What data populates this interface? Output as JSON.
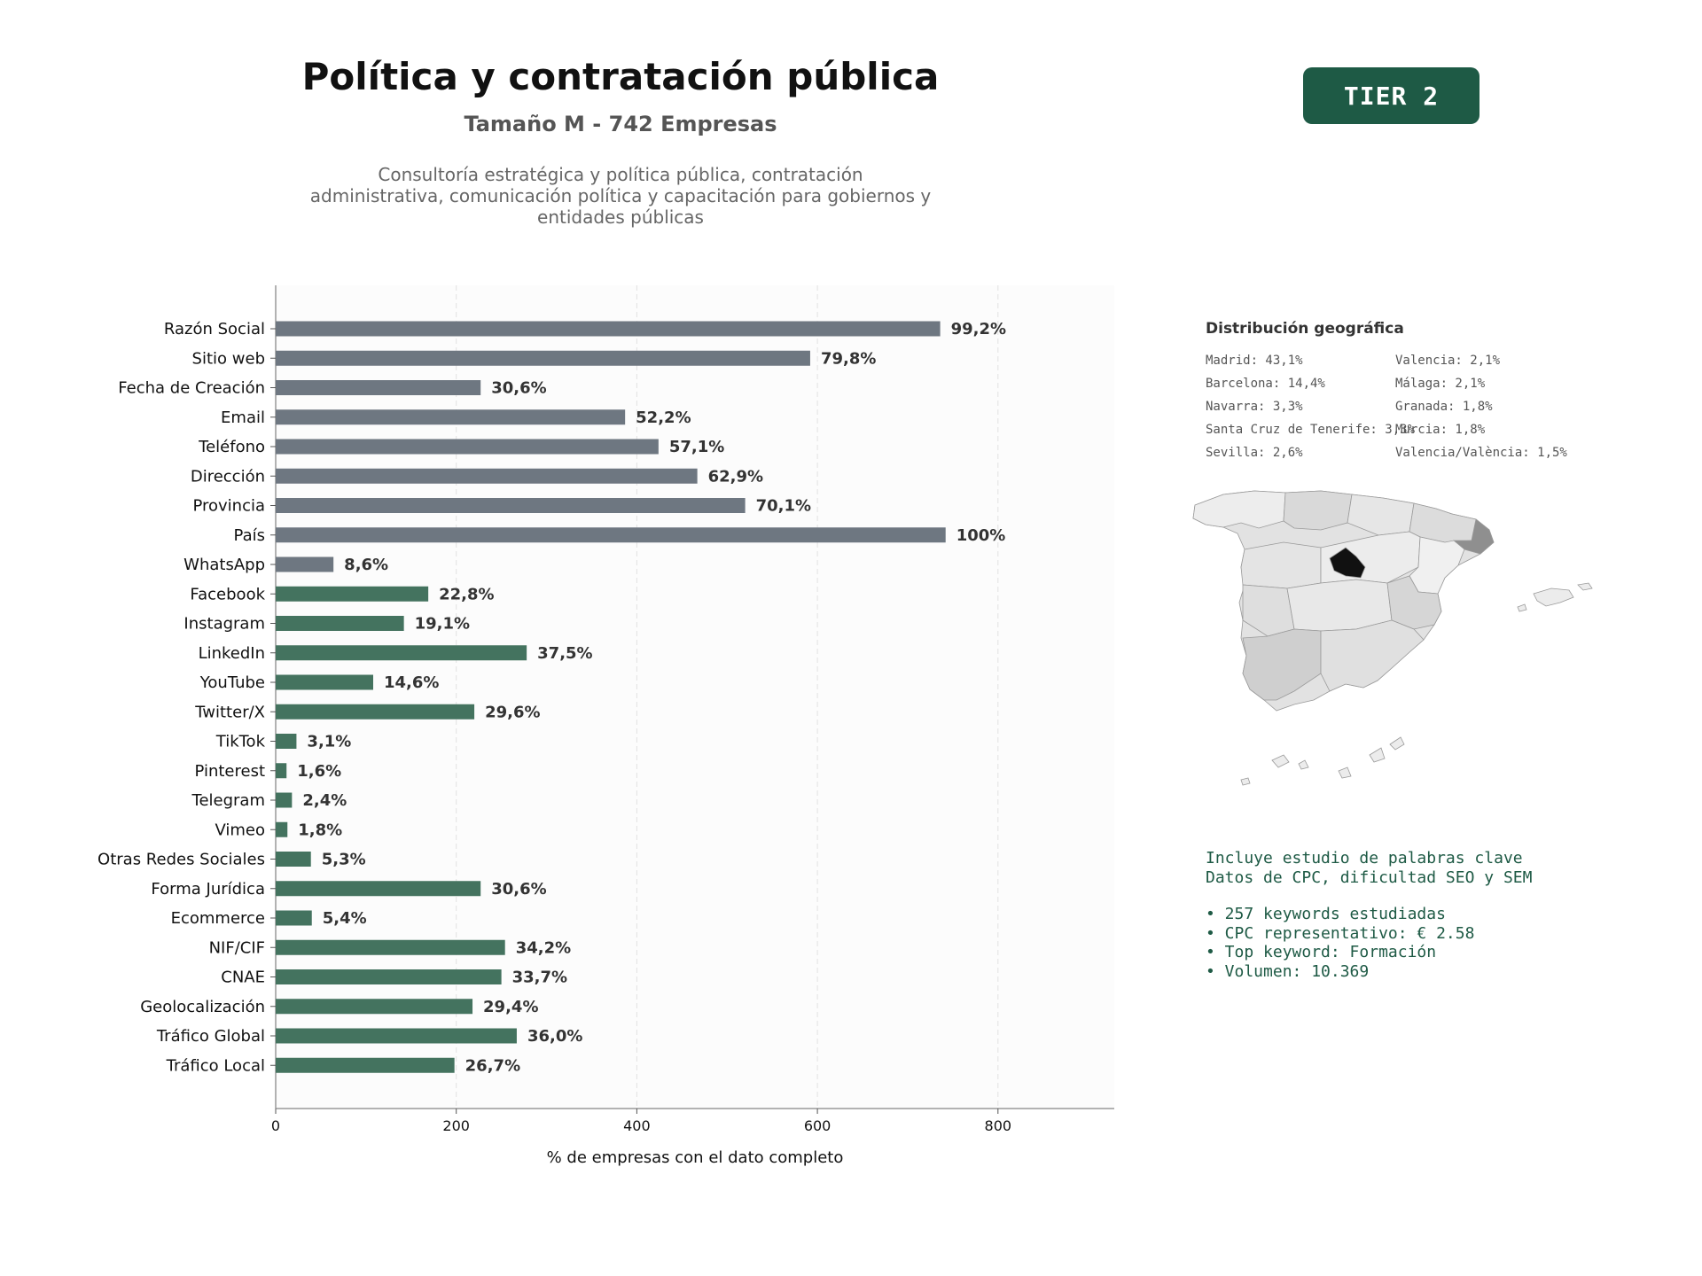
{
  "header": {
    "title": "Política y contratación pública",
    "subtitle": "Tamaño M - 742 Empresas",
    "description_lines": [
      "Consultoría estratégica y política pública, contratación",
      "administrativa, comunicación política y capacitación para gobiernos y",
      "entidades públicas"
    ]
  },
  "badge": {
    "label": "TIER 2",
    "color": "#1e5a45"
  },
  "colors": {
    "gray_bar": "#6e7781",
    "green_bar": "#44735f",
    "accent": "#1e5a45"
  },
  "chart_data": {
    "type": "bar",
    "orientation": "horizontal",
    "xlabel": "% de empresas con el dato completo",
    "xlim": [
      0,
      930
    ],
    "xticks": [
      0,
      200,
      400,
      600,
      800
    ],
    "grid": "vertical dashed",
    "categories": [
      "Razón Social",
      "Sitio web",
      "Fecha de Creación",
      "Email",
      "Teléfono",
      "Dirección",
      "Provincia",
      "País",
      "WhatsApp",
      "Facebook",
      "Instagram",
      "LinkedIn",
      "YouTube",
      "Twitter/X",
      "TikTok",
      "Pinterest",
      "Telegram",
      "Vimeo",
      "Otras Redes Sociales",
      "Forma Jurídica",
      "Ecommerce",
      "NIF/CIF",
      "CNAE",
      "Geolocalización",
      "Tráfico Global",
      "Tráfico Local"
    ],
    "values": [
      736,
      592,
      227,
      387,
      424,
      467,
      520,
      742,
      64,
      169,
      142,
      278,
      108,
      220,
      23,
      12,
      18,
      13,
      39,
      227,
      40,
      254,
      250,
      218,
      267,
      198
    ],
    "labels": [
      "99,2%",
      "79,8%",
      "30,6%",
      "52,2%",
      "57,1%",
      "62,9%",
      "70,1%",
      "100%",
      "8,6%",
      "22,8%",
      "19,1%",
      "37,5%",
      "14,6%",
      "29,6%",
      "3,1%",
      "1,6%",
      "2,4%",
      "1,8%",
      "5,3%",
      "30,6%",
      "5,4%",
      "34,2%",
      "33,7%",
      "29,4%",
      "36,0%",
      "26,7%"
    ],
    "color_groups": [
      "gray",
      "gray",
      "gray",
      "gray",
      "gray",
      "gray",
      "gray",
      "gray",
      "gray",
      "green",
      "green",
      "green",
      "green",
      "green",
      "green",
      "green",
      "green",
      "green",
      "green",
      "green",
      "green",
      "green",
      "green",
      "green",
      "green",
      "green"
    ]
  },
  "geo": {
    "title": "Distribución geográfica",
    "col1": [
      "Madrid: 43,1%",
      "Barcelona: 14,4%",
      "Navarra: 3,3%",
      "Santa Cruz de Tenerife: 3,3%",
      "Sevilla: 2,6%"
    ],
    "col2": [
      "Valencia: 2,1%",
      "Málaga: 2,1%",
      "Granada: 1,8%",
      "Murcia: 1,8%",
      "Valencia/València: 1,5%"
    ],
    "map": {
      "highlight_dark": "Madrid",
      "highlight_mid": "Barcelona"
    }
  },
  "keywords": {
    "line1": "Incluye estudio de palabras clave",
    "line2": "Datos de CPC, dificultad SEO y SEM",
    "bullets": [
      "• 257 keywords estudiadas",
      "• CPC representativo: € 2.58",
      "• Top keyword: Formación",
      "• Volumen: 10.369"
    ]
  }
}
